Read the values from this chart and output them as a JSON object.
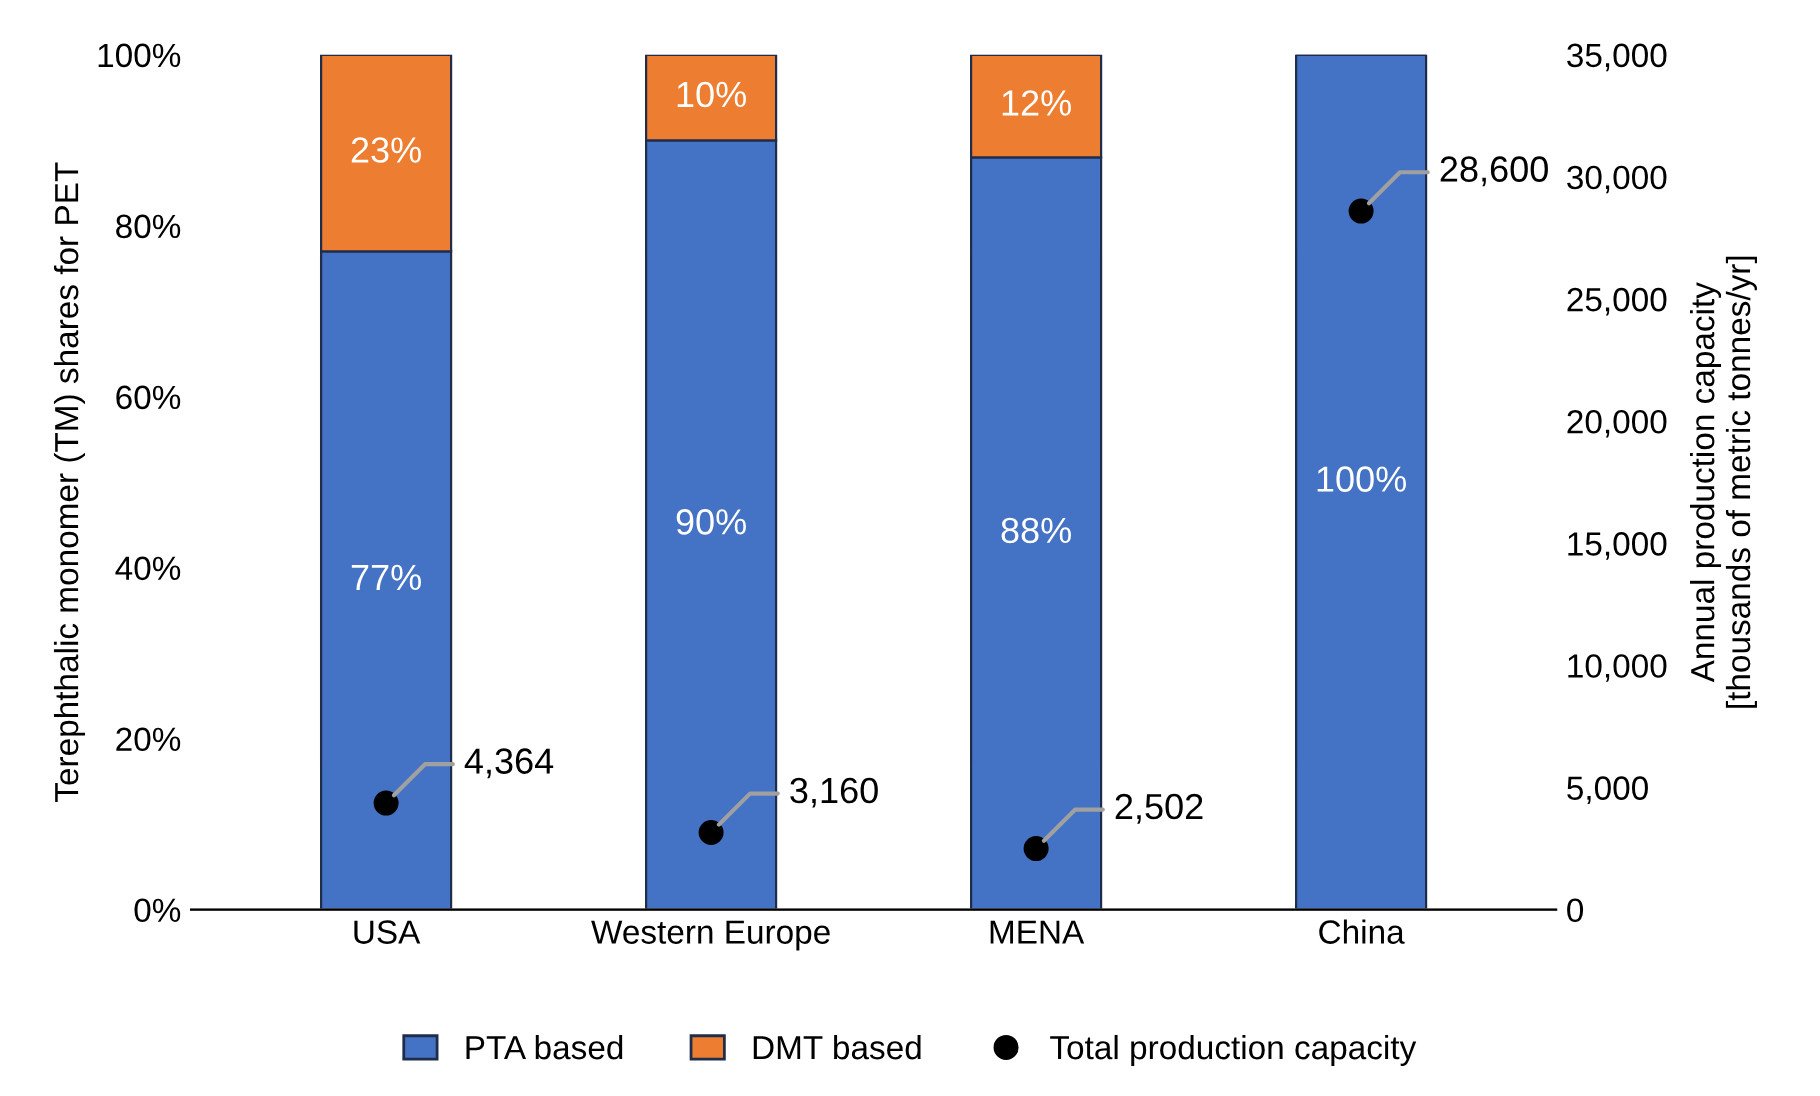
{
  "chart_data": {
    "type": "bar",
    "stacked": true,
    "ylabel": "Terephthalic monomer (TM) shares for PET",
    "y2label": "Annual production capacity\n[thousands of metric tonnes/yr]",
    "categories": [
      "USA",
      "Western Europe",
      "MENA",
      "China"
    ],
    "series": [
      {
        "name": "PTA based",
        "color": "#4472c4",
        "values": [
          77,
          90,
          88,
          100
        ],
        "value_labels": [
          "77%",
          "90%",
          "88%",
          "100%"
        ]
      },
      {
        "name": "DMT based",
        "color": "#ed7d31",
        "values": [
          23,
          10,
          12,
          null
        ],
        "value_labels": [
          "23%",
          "10%",
          "12%",
          null
        ]
      },
      {
        "name": "Total production capacity",
        "type": "scatter",
        "axis": "y2",
        "color": "#000000",
        "values": [
          4364,
          3160,
          2502,
          28600
        ],
        "value_labels": [
          "4,364",
          "3,160",
          "2,502",
          "28,600"
        ]
      }
    ],
    "ylim": [
      0,
      100
    ],
    "yticks": [
      {
        "value": 0,
        "label": "0%"
      },
      {
        "value": 20,
        "label": "20%"
      },
      {
        "value": 40,
        "label": "40%"
      },
      {
        "value": 60,
        "label": "60%"
      },
      {
        "value": 80,
        "label": "80%"
      },
      {
        "value": 100,
        "label": "100%"
      }
    ],
    "y2lim": [
      0,
      35000
    ],
    "y2ticks": [
      {
        "value": 0,
        "label": "0"
      },
      {
        "value": 5000,
        "label": "5,000"
      },
      {
        "value": 10000,
        "label": "10,000"
      },
      {
        "value": 15000,
        "label": "15,000"
      },
      {
        "value": 20000,
        "label": "20,000"
      },
      {
        "value": 25000,
        "label": "25,000"
      },
      {
        "value": 30000,
        "label": "30,000"
      },
      {
        "value": 35000,
        "label": "35,000"
      }
    ],
    "grid": false,
    "legend": "bottom",
    "marker": "circle"
  }
}
